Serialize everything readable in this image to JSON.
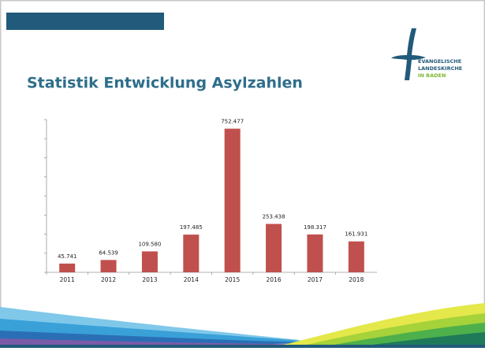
{
  "logo": {
    "lines": [
      "EVANGELISCHE",
      "LANDESKIRCHE",
      "IN BADEN"
    ]
  },
  "chart_data": {
    "type": "bar",
    "title": "Statistik Entwicklung Asylzahlen",
    "categories": [
      "2011",
      "2012",
      "2013",
      "2014",
      "2015",
      "2016",
      "2017",
      "2018"
    ],
    "values": [
      45741,
      64539,
      109580,
      197485,
      752477,
      253438,
      198317,
      161931
    ],
    "value_labels": [
      "45.741",
      "64.539",
      "109.580",
      "197.485",
      "752.477",
      "253.438",
      "198.317",
      "161.931"
    ],
    "color": "#c0504d",
    "ylim": [
      0,
      800000
    ],
    "yticks": [
      0,
      100000,
      200000,
      300000,
      400000,
      500000,
      600000,
      700000,
      800000
    ]
  }
}
